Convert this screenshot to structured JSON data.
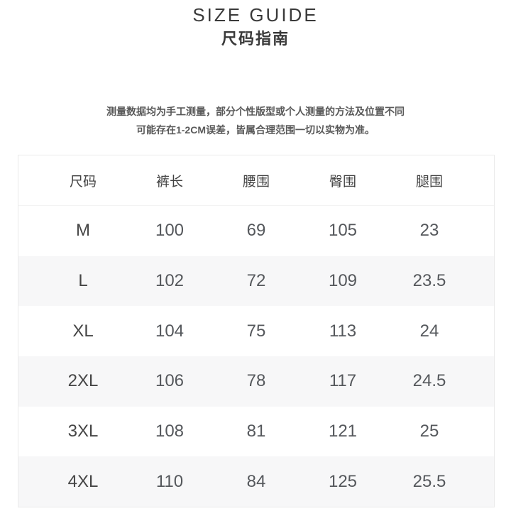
{
  "header": {
    "title_en": "SIZE GUIDE",
    "title_zh": "尺码指南"
  },
  "note": {
    "line1": "测量数据均为手工测量，部分个性版型或个人测量的方法及位置不同",
    "line2": "可能存在1-2CM误差，皆属合理范围一切以实物为准。"
  },
  "size_table": {
    "columns": [
      "尺码",
      "裤长",
      "腰围",
      "臀围",
      "腿围"
    ],
    "rows": [
      {
        "size": "M",
        "values": [
          "100",
          "69",
          "105",
          "23"
        ]
      },
      {
        "size": "L",
        "values": [
          "102",
          "72",
          "109",
          "23.5"
        ]
      },
      {
        "size": "XL",
        "values": [
          "104",
          "75",
          "113",
          "24"
        ]
      },
      {
        "size": "2XL",
        "values": [
          "106",
          "78",
          "117",
          "24.5"
        ]
      },
      {
        "size": "3XL",
        "values": [
          "108",
          "81",
          "121",
          "25"
        ]
      },
      {
        "size": "4XL",
        "values": [
          "110",
          "84",
          "125",
          "25.5"
        ]
      }
    ]
  },
  "colors": {
    "background": "#ffffff",
    "title_text": "#3a3a3a",
    "note_text": "#595959",
    "table_border": "#eaeaea",
    "row_stripe": "#f7f7f8",
    "cell_text": "#55585c"
  }
}
